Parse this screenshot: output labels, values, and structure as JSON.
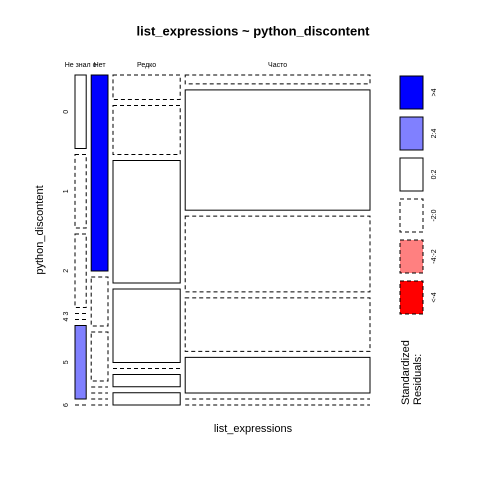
{
  "chart_data": {
    "type": "mosaic",
    "title": "list_expressions ~ python_discontent",
    "x_label": "list_expressions",
    "y_label": "python_discontent",
    "categories": [
      "Не знал о",
      "Нет",
      "Редко",
      "Часто"
    ],
    "row_categories": [
      "0",
      "1",
      "2",
      "3",
      "4",
      "5",
      "6"
    ],
    "values": [
      [
        1,
        1,
        1,
        0,
        0,
        1,
        0
      ],
      [
        4,
        1,
        1,
        0,
        0,
        0,
        0
      ],
      [
        2,
        4,
        10,
        6,
        0,
        1,
        1
      ],
      [
        2,
        27,
        17,
        12,
        8,
        0,
        0
      ]
    ],
    "residuals": [
      [
        0.5,
        -0.5,
        -0.5,
        -0.3,
        -0.3,
        3,
        -0.3
      ],
      [
        5,
        -0.5,
        -0.5,
        -0.3,
        -0.3,
        -0.5,
        -0.3
      ],
      [
        -0.3,
        -0.5,
        1,
        1,
        -0.5,
        0.5,
        0.5
      ],
      [
        -0.8,
        0.8,
        -0.2,
        -0.3,
        0.5,
        -0.8,
        -0.8
      ]
    ],
    "breaks": [
      4,
      2,
      0,
      -2,
      -4
    ],
    "legend_title": [
      "Standardized",
      "Residuals:"
    ],
    "legend": [
      {
        "label": ">4",
        "color": "#0000ff",
        "dashed": false
      },
      {
        "label": "2:4",
        "color": "#8080ff",
        "dashed": false
      },
      {
        "label": "0:2",
        "color": "#ffffff",
        "dashed": false
      },
      {
        "label": "-2:0",
        "color": "#ffffff",
        "dashed": true
      },
      {
        "label": "-4:-2",
        "color": "#ff8080",
        "dashed": true
      },
      {
        "label": "<-4",
        "color": "#ff0000",
        "dashed": true
      }
    ]
  }
}
